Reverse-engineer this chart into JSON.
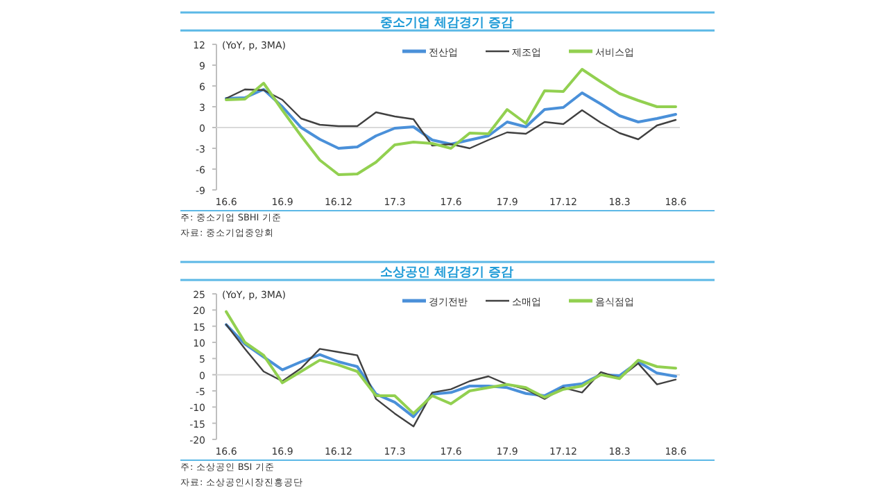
{
  "chart_data": [
    {
      "type": "line",
      "title": "중소기업 체감경기 증감",
      "ylabel": "(YoY, p, 3MA)",
      "categories": [
        "16.6",
        null,
        null,
        "16.9",
        null,
        null,
        "16.12",
        null,
        null,
        "17.3",
        null,
        null,
        "17.6",
        null,
        null,
        "17.9",
        null,
        null,
        "17.12",
        null,
        null,
        "18.3",
        null,
        null,
        "18.6"
      ],
      "series": [
        {
          "name": "전산업",
          "color": "#4a90d9",
          "values": [
            4.2,
            4.3,
            5.5,
            3.0,
            0.0,
            -1.7,
            -3.0,
            -2.8,
            -1.2,
            -0.1,
            0.1,
            -1.8,
            -2.4,
            -1.8,
            -1.2,
            0.8,
            0.1,
            2.6,
            2.9,
            5.0,
            3.4,
            1.7,
            0.8,
            1.3,
            1.9
          ]
        },
        {
          "name": "제조업",
          "color": "#404040",
          "values": [
            4.2,
            5.5,
            5.4,
            4.0,
            1.3,
            0.4,
            0.2,
            0.2,
            2.2,
            1.6,
            1.2,
            -2.6,
            -2.4,
            -3.0,
            -1.8,
            -0.7,
            -0.9,
            0.8,
            0.5,
            2.5,
            0.7,
            -0.8,
            -1.7,
            0.3,
            1.1
          ]
        },
        {
          "name": "서비스업",
          "color": "#92d050",
          "values": [
            4.0,
            4.1,
            6.4,
            2.5,
            -1.2,
            -4.7,
            -6.8,
            -6.7,
            -5.0,
            -2.5,
            -2.1,
            -2.3,
            -3.0,
            -0.8,
            -0.9,
            2.6,
            0.6,
            5.3,
            5.2,
            8.4,
            6.6,
            4.9,
            3.9,
            3.0,
            3.0
          ]
        }
      ],
      "ylim": [
        -9,
        12
      ],
      "yticks": [
        -9,
        -6,
        -3,
        0,
        3,
        6,
        9,
        12
      ],
      "grid": false,
      "legend": "top right",
      "marker": "none",
      "ref_lines": [
        {
          "axis": "y",
          "value": 0,
          "color": "#d9d9d9"
        }
      ],
      "annotations": [
        "주: 중소기업 SBHI 기준",
        "자료: 중소기업중앙회"
      ]
    },
    {
      "type": "line",
      "title": "소상공인 체감경기 증감",
      "ylabel": "(YoY, p, 3MA)",
      "categories": [
        "16.6",
        null,
        null,
        "16.9",
        null,
        null,
        "16.12",
        null,
        null,
        "17.3",
        null,
        null,
        "17.6",
        null,
        null,
        "17.9",
        null,
        null,
        "17.12",
        null,
        null,
        "18.3",
        null,
        null,
        "18.6"
      ],
      "series": [
        {
          "name": "경기전반",
          "color": "#4a90d9",
          "values": [
            15.5,
            9.5,
            5.5,
            1.5,
            4.0,
            6.2,
            4.0,
            2.5,
            -6.0,
            -8.5,
            -13.0,
            -6.0,
            -5.5,
            -3.5,
            -3.5,
            -4.0,
            -5.8,
            -6.5,
            -3.5,
            -2.8,
            0.0,
            -0.3,
            4.0,
            0.5,
            -0.5
          ]
        },
        {
          "name": "소매업",
          "color": "#404040",
          "values": [
            15.5,
            8.0,
            1.0,
            -2.0,
            2.0,
            8.0,
            7.0,
            6.0,
            -7.5,
            -12.0,
            -16.0,
            -5.5,
            -4.5,
            -2.0,
            -0.5,
            -3.0,
            -4.5,
            -7.5,
            -4.0,
            -5.5,
            0.8,
            -1.0,
            3.5,
            -3.0,
            -1.5
          ]
        },
        {
          "name": "음식점업",
          "color": "#92d050",
          "values": [
            19.5,
            10.0,
            6.0,
            -2.5,
            1.0,
            4.5,
            3.0,
            1.0,
            -6.5,
            -6.5,
            -12.0,
            -6.5,
            -9.0,
            -5.0,
            -4.0,
            -3.0,
            -4.0,
            -7.0,
            -4.5,
            -3.5,
            0.0,
            -1.2,
            4.5,
            2.5,
            2.0
          ]
        }
      ],
      "ylim": [
        -20,
        25
      ],
      "yticks": [
        -20,
        -15,
        -10,
        -5,
        0,
        5,
        10,
        15,
        20,
        25
      ],
      "grid": false,
      "legend": "top right",
      "marker": "none",
      "ref_lines": [
        {
          "axis": "y",
          "value": 0,
          "color": "#d9d9d9"
        }
      ],
      "annotations": [
        "주: 소상공인 BSI 기준",
        "자료: 소상공인시장진흥공단"
      ]
    }
  ]
}
